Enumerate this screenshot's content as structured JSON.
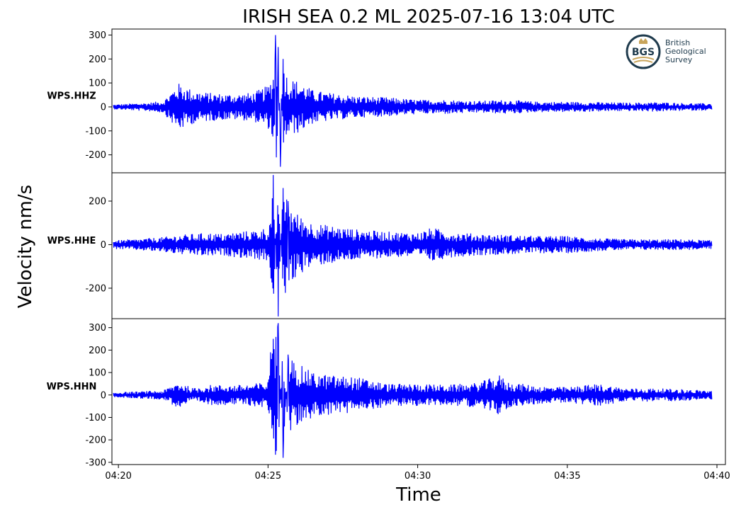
{
  "title": "IRISH SEA 0.2 ML   2025-07-16 13:04 UTC",
  "ylabel": "Velocity nm/s",
  "xlabel": "Time",
  "x_ticks": [
    "04:20",
    "04:25",
    "04:30",
    "04:35",
    "04:40"
  ],
  "logo": {
    "abbr": "BGS",
    "lines": [
      "British",
      "Geological",
      "Survey"
    ],
    "colors": {
      "ring": "#1f3b4d",
      "gold": "#c8a45a"
    }
  },
  "trace_color": "#0000ff",
  "chart_data": [
    {
      "type": "line",
      "channel": "WPS.HHZ",
      "x_range": [
        "04:19:47",
        "04:40:17"
      ],
      "ylim": [
        -275,
        325
      ],
      "y_ticks": [
        300,
        200,
        100,
        0,
        -100,
        -200
      ],
      "series": [
        {
          "x": [
            "04:19:50",
            "04:20:30",
            "04:21:00",
            "04:21:30",
            "04:22:00",
            "04:22:30",
            "04:23:00",
            "04:23:30",
            "04:24:00",
            "04:24:30",
            "04:25:00",
            "04:25:10",
            "04:25:15",
            "04:25:20",
            "04:25:25",
            "04:25:30",
            "04:25:40",
            "04:26:00",
            "04:26:30",
            "04:27:00",
            "04:28:00",
            "04:29:00",
            "04:30:00",
            "04:31:00",
            "04:32:00",
            "04:33:00",
            "04:34:00",
            "04:35:00",
            "04:36:00",
            "04:37:00",
            "04:38:00",
            "04:39:00",
            "04:39:50"
          ],
          "amplitude": [
            10,
            15,
            18,
            25,
            100,
            70,
            60,
            55,
            55,
            60,
            90,
            140,
            300,
            250,
            -250,
            200,
            120,
            110,
            70,
            60,
            45,
            40,
            30,
            30,
            25,
            30,
            22,
            22,
            20,
            18,
            20,
            16,
            15
          ]
        }
      ]
    },
    {
      "type": "line",
      "channel": "WPS.HHE",
      "x_range": [
        "04:19:47",
        "04:40:17"
      ],
      "ylim": [
        -340,
        330
      ],
      "y_ticks": [
        200,
        0,
        -200
      ],
      "series": [
        {
          "x": [
            "04:19:50",
            "04:20:30",
            "04:21:00",
            "04:21:30",
            "04:22:00",
            "04:22:30",
            "04:23:00",
            "04:23:30",
            "04:24:00",
            "04:24:30",
            "04:25:00",
            "04:25:05",
            "04:25:10",
            "04:25:20",
            "04:25:30",
            "04:25:40",
            "04:26:00",
            "04:26:30",
            "04:27:00",
            "04:28:00",
            "04:29:00",
            "04:30:00",
            "04:30:30",
            "04:31:00",
            "04:32:00",
            "04:33:00",
            "04:34:00",
            "04:35:00",
            "04:36:00",
            "04:37:00",
            "04:38:00",
            "04:39:00",
            "04:39:50"
          ],
          "amplitude": [
            20,
            25,
            30,
            35,
            45,
            50,
            55,
            50,
            60,
            65,
            80,
            130,
            320,
            -330,
            260,
            200,
            140,
            100,
            90,
            70,
            60,
            55,
            80,
            60,
            50,
            45,
            40,
            40,
            30,
            25,
            25,
            25,
            20
          ]
        }
      ]
    },
    {
      "type": "line",
      "channel": "WPS.HHN",
      "x_range": [
        "04:19:47",
        "04:40:17"
      ],
      "ylim": [
        -310,
        340
      ],
      "y_ticks": [
        300,
        200,
        100,
        0,
        -100,
        -200,
        -300
      ],
      "series": [
        {
          "x": [
            "04:19:50",
            "04:20:30",
            "04:21:00",
            "04:21:30",
            "04:22:00",
            "04:22:30",
            "04:23:00",
            "04:23:30",
            "04:24:00",
            "04:24:30",
            "04:25:00",
            "04:25:05",
            "04:25:10",
            "04:25:20",
            "04:25:30",
            "04:25:40",
            "04:26:00",
            "04:26:30",
            "04:27:00",
            "04:28:00",
            "04:29:00",
            "04:30:00",
            "04:31:00",
            "04:32:00",
            "04:32:45",
            "04:33:00",
            "04:34:00",
            "04:35:00",
            "04:36:00",
            "04:37:00",
            "04:38:00",
            "04:39:00",
            "04:39:50"
          ],
          "amplitude": [
            12,
            15,
            18,
            20,
            60,
            30,
            45,
            45,
            45,
            50,
            60,
            190,
            250,
            320,
            -280,
            180,
            140,
            100,
            90,
            80,
            50,
            50,
            45,
            55,
            90,
            60,
            40,
            35,
            50,
            30,
            30,
            25,
            20
          ]
        }
      ]
    }
  ]
}
